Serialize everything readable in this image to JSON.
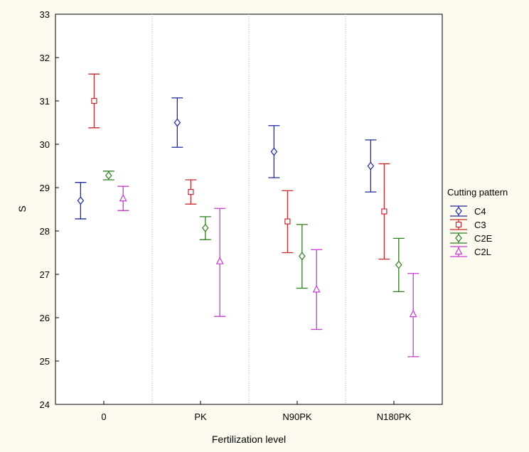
{
  "chart_data": {
    "type": "scatter",
    "xlabel": "Fertilization level",
    "ylabel": "S",
    "categories": [
      "0",
      "PK",
      "N90PK",
      "N180PK"
    ],
    "ylim": [
      24,
      33
    ],
    "yticks": [
      "24",
      "25",
      "26",
      "27",
      "28",
      "29",
      "30",
      "31",
      "32",
      "33"
    ],
    "grid": true,
    "legend": {
      "title": "Cutting pattern",
      "placement": "right"
    },
    "series": [
      {
        "name": "C4",
        "color": "#1f2a9c",
        "marker": "diamond",
        "mean": [
          28.7,
          30.5,
          29.83,
          29.5
        ],
        "lower": [
          28.28,
          29.93,
          29.23,
          28.9
        ],
        "upper": [
          29.12,
          31.07,
          30.43,
          30.1
        ]
      },
      {
        "name": "C3",
        "color": "#c8282d",
        "marker": "square",
        "mean": [
          31.0,
          28.9,
          28.22,
          28.45
        ],
        "lower": [
          30.38,
          28.62,
          27.5,
          27.35
        ],
        "upper": [
          31.62,
          29.18,
          28.93,
          29.55
        ]
      },
      {
        "name": "C2E",
        "color": "#2e7d1e",
        "marker": "diamond",
        "mean": [
          29.28,
          28.07,
          27.42,
          27.22
        ],
        "lower": [
          29.18,
          27.8,
          26.68,
          26.6
        ],
        "upper": [
          29.38,
          28.33,
          28.15,
          27.83
        ]
      },
      {
        "name": "C2L",
        "color": "#c73ad0",
        "marker": "triangle",
        "mean": [
          28.75,
          27.3,
          26.65,
          26.08
        ],
        "lower": [
          28.47,
          26.03,
          25.73,
          25.1
        ],
        "upper": [
          29.03,
          28.52,
          27.57,
          27.02
        ]
      }
    ]
  }
}
